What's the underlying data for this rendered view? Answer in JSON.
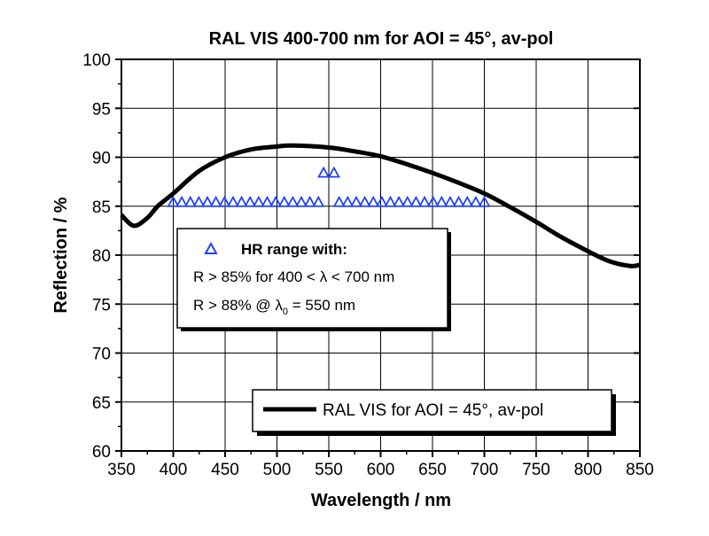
{
  "chart_data": {
    "type": "line",
    "title": "RAL VIS 400-700 nm for AOI = 45°, av-pol",
    "xlabel": "Wavelength / nm",
    "ylabel": "Reflection / %",
    "xlim": [
      350,
      850
    ],
    "ylim": [
      60,
      100
    ],
    "xticks": [
      "350",
      "400",
      "450",
      "500",
      "550",
      "600",
      "650",
      "700",
      "750",
      "800",
      "850"
    ],
    "yticks": [
      "60",
      "65",
      "70",
      "75",
      "80",
      "85",
      "90",
      "95",
      "100"
    ],
    "grid": true,
    "series": [
      {
        "name": "RAL VIS for AOI = 45°, av-pol",
        "color": "#000000",
        "x": [
          350,
          362,
          375,
          385,
          400,
          425,
          450,
          475,
          500,
          515,
          550,
          575,
          600,
          625,
          650,
          675,
          700,
          725,
          750,
          775,
          800,
          820,
          840,
          850
        ],
        "y": [
          84.1,
          83.0,
          83.8,
          85.0,
          86.3,
          88.6,
          90.0,
          90.8,
          91.1,
          91.2,
          91.0,
          90.6,
          90.1,
          89.3,
          88.4,
          87.4,
          86.3,
          84.9,
          83.4,
          81.8,
          80.4,
          79.4,
          78.9,
          79.0
        ]
      },
      {
        "name": "HR range",
        "color": "#1f3fff",
        "marker": "triangle-open",
        "groups": [
          {
            "x_start": 400,
            "x_end": 540,
            "count": 18,
            "y": 85
          },
          {
            "x_start": 560,
            "x_end": 700,
            "count": 18,
            "y": 85
          },
          {
            "x": [
              545,
              555
            ],
            "y": 88
          }
        ]
      }
    ],
    "annotation": {
      "heading": "HR range with:",
      "line1": "R > 85% for 400 < λ < 700 nm",
      "line2_pre": "R > 88% @ λ",
      "line2_sub": "0",
      "line2_post": " = 550 nm"
    },
    "legend": {
      "label": "RAL VIS for AOI = 45°, av-pol",
      "placement": "bottom-right"
    }
  }
}
